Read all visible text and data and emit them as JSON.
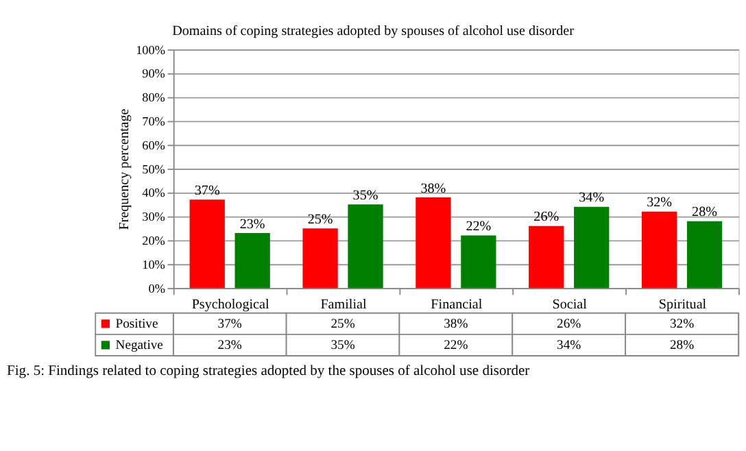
{
  "chart_data": {
    "type": "bar",
    "title": "Domains of coping strategies adopted by spouses of alcohol use disorder",
    "ylabel": "Frequency percentage",
    "categories": [
      "Psychological",
      "Familial",
      "Financial",
      "Social",
      "Spiritual"
    ],
    "series": [
      {
        "name": "Positive",
        "color": "#ff0000",
        "values": [
          37,
          25,
          38,
          26,
          32
        ],
        "value_labels": [
          "37%",
          "25%",
          "38%",
          "26%",
          "32%"
        ]
      },
      {
        "name": "Negative",
        "color": "#008000",
        "values": [
          23,
          35,
          22,
          34,
          28
        ],
        "value_labels": [
          "23%",
          "35%",
          "22%",
          "34%",
          "28%"
        ]
      }
    ],
    "ylim": [
      0,
      100
    ],
    "yticks": [
      {
        "value": 0,
        "label": "0%"
      },
      {
        "value": 10,
        "label": "10%"
      },
      {
        "value": 20,
        "label": "20%"
      },
      {
        "value": 30,
        "label": "30%"
      },
      {
        "value": 40,
        "label": "40%"
      },
      {
        "value": 50,
        "label": "50%"
      },
      {
        "value": 60,
        "label": "60%"
      },
      {
        "value": 70,
        "label": "70%"
      },
      {
        "value": 80,
        "label": "80%"
      },
      {
        "value": 90,
        "label": "90%"
      },
      {
        "value": 100,
        "label": "100%"
      }
    ],
    "grid": "y",
    "legend": "bottom",
    "annotations": [
      "Fig. 5: Findings related to coping strategies adopted by the spouses of alcohol use disorder"
    ]
  }
}
